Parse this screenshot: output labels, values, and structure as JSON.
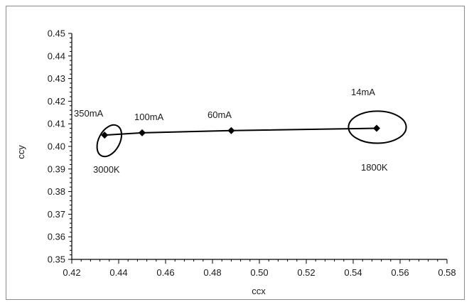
{
  "chart_data": {
    "type": "scatter",
    "xlabel": "ccx",
    "ylabel": "ccy",
    "xlim": [
      0.42,
      0.58
    ],
    "ylim": [
      0.35,
      0.45
    ],
    "xticks": [
      "0.42",
      "0.44",
      "0.46",
      "0.48",
      "0.50",
      "0.52",
      "0.54",
      "0.56",
      "0.58"
    ],
    "yticks": [
      "0.35",
      "0.36",
      "0.37",
      "0.38",
      "0.39",
      "0.40",
      "0.41",
      "0.42",
      "0.43",
      "0.44",
      "0.45"
    ],
    "grid": false,
    "line_color": "#000000",
    "series": [
      {
        "points": [
          {
            "x": 0.434,
            "y": 0.405
          },
          {
            "x": 0.45,
            "y": 0.406
          },
          {
            "x": 0.488,
            "y": 0.407
          },
          {
            "x": 0.55,
            "y": 0.408
          }
        ]
      }
    ],
    "point_labels": [
      "350mA",
      "100mA",
      "60mA",
      "14mA"
    ],
    "temperature_labels": [
      "3000K",
      "1800K"
    ],
    "ellipses": [
      {
        "cx": 0.436,
        "cy": 0.4025,
        "rx": 0.0045,
        "ry": 0.0075,
        "rotation": 28
      },
      {
        "cx": 0.5503,
        "cy": 0.4085,
        "rx": 0.0123,
        "ry": 0.0071,
        "rotation": 0
      }
    ]
  }
}
